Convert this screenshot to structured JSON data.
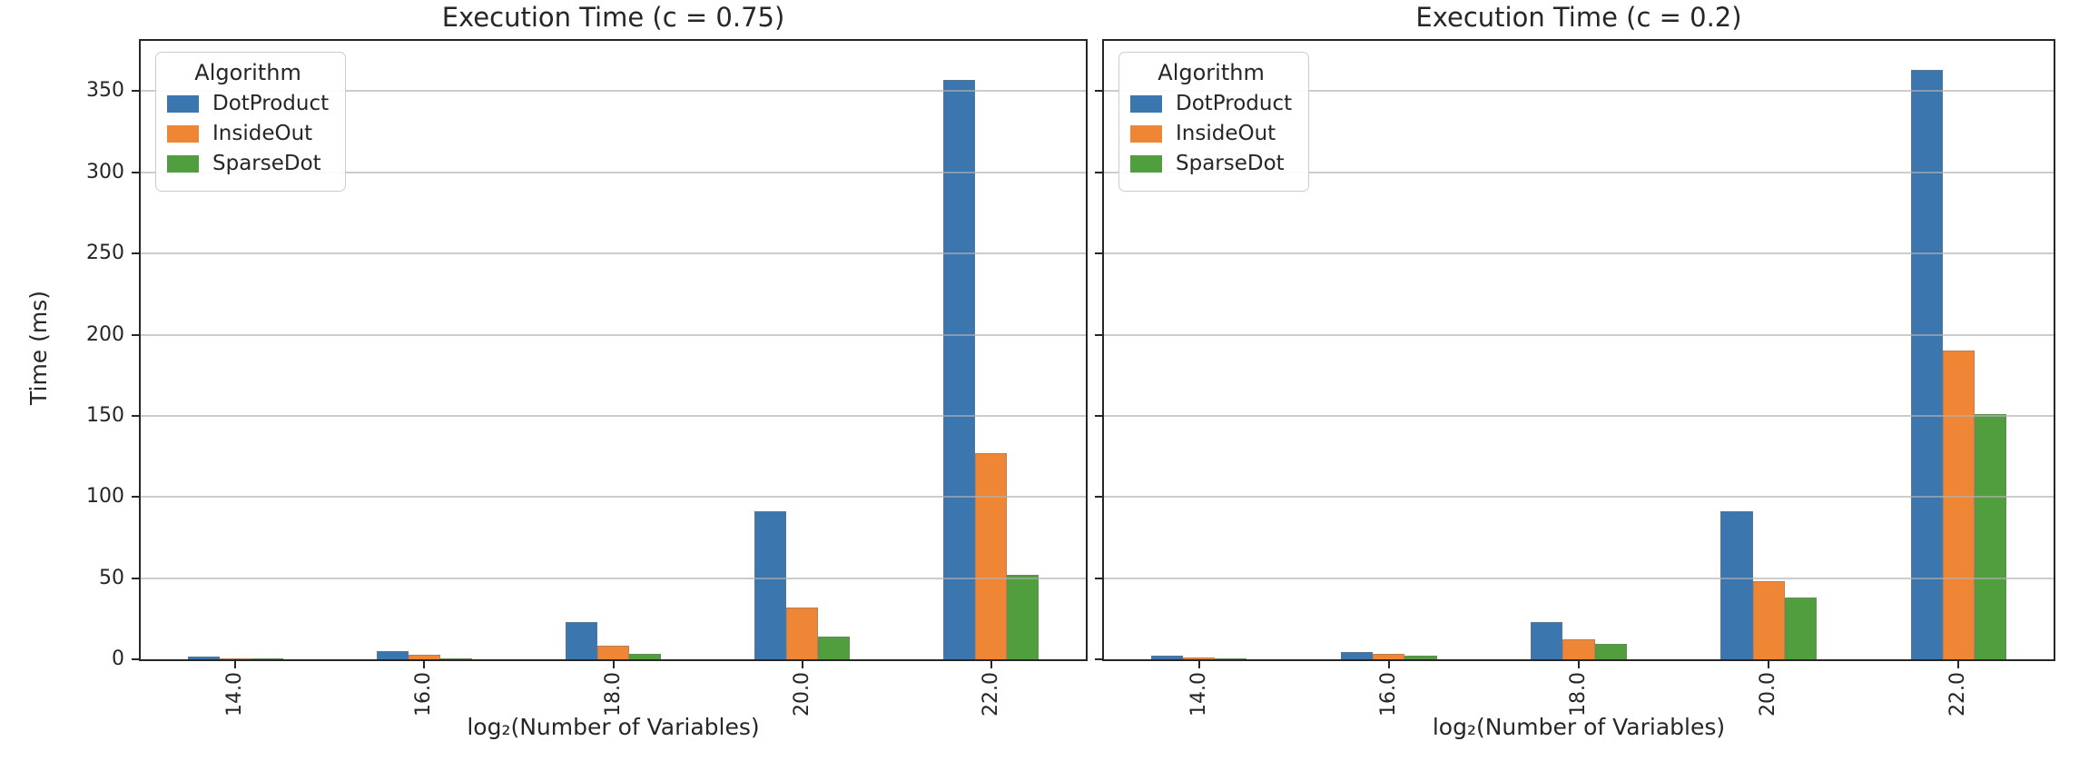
{
  "figure": {
    "background": "#ffffff",
    "ylabel": "Time (ms)"
  },
  "palette": {
    "blue": "#3b76af",
    "orange": "#ef8636",
    "green": "#519e3e",
    "grid": "#b0b0b0",
    "spine": "#262626"
  },
  "chart_data": [
    {
      "type": "bar",
      "title": "Execution Time (c = 0.75)",
      "xlabel": "log₂(Number of Variables)",
      "ylabel": "Time (ms)",
      "legend_title": "Algorithm",
      "legend_position": "upper left",
      "grid": true,
      "categories": [
        "14.0",
        "16.0",
        "18.0",
        "20.0",
        "22.0"
      ],
      "series": [
        {
          "name": "DotProduct",
          "color": "#3b76af",
          "values": [
            1.8,
            5.0,
            23.0,
            91.0,
            357.0
          ]
        },
        {
          "name": "InsideOut",
          "color": "#ef8636",
          "values": [
            0.6,
            2.9,
            8.4,
            32.0,
            127.0
          ]
        },
        {
          "name": "SparseDot",
          "color": "#519e3e",
          "values": [
            0.3,
            0.6,
            3.4,
            13.8,
            52.0
          ]
        }
      ],
      "ylim": [
        0,
        381
      ],
      "yticks": [
        0,
        50,
        100,
        150,
        200,
        250,
        300,
        350
      ],
      "show_ytick_labels": true
    },
    {
      "type": "bar",
      "title": "Execution Time (c = 0.2)",
      "xlabel": "log₂(Number of Variables)",
      "ylabel": "Time (ms)",
      "legend_title": "Algorithm",
      "legend_position": "upper left",
      "grid": true,
      "categories": [
        "14.0",
        "16.0",
        "18.0",
        "20.0",
        "22.0"
      ],
      "series": [
        {
          "name": "DotProduct",
          "color": "#3b76af",
          "values": [
            2.0,
            4.6,
            23.0,
            91.0,
            363.0
          ]
        },
        {
          "name": "InsideOut",
          "color": "#ef8636",
          "values": [
            1.2,
            3.3,
            12.3,
            48.0,
            190.0
          ]
        },
        {
          "name": "SparseDot",
          "color": "#519e3e",
          "values": [
            0.3,
            2.2,
            9.5,
            38.0,
            151.0
          ]
        }
      ],
      "ylim": [
        0,
        381
      ],
      "yticks": [
        0,
        50,
        100,
        150,
        200,
        250,
        300,
        350
      ],
      "show_ytick_labels": false
    }
  ]
}
